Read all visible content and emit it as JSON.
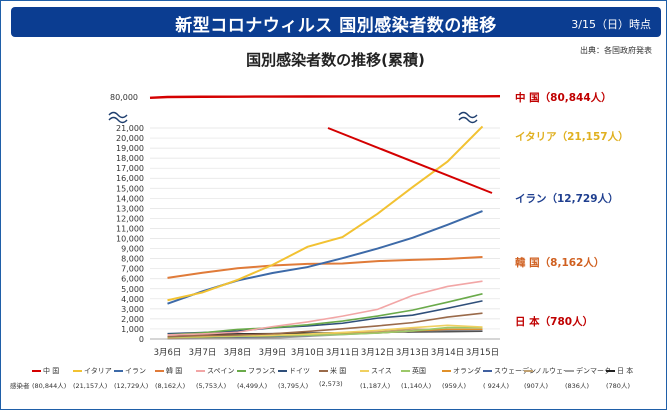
{
  "header": {
    "title": "新型コロナウィルス 国別感染者数の推移",
    "date": "3/15（日）時点"
  },
  "source": "出典：各国政府発表",
  "chart_data": {
    "type": "line",
    "title": "国別感染者数の推移(累積)",
    "categories": [
      "3月6日",
      "3月7日",
      "3月8日",
      "3月9日",
      "3月10日",
      "3月11日",
      "3月12日",
      "3月13日",
      "3月14日",
      "3月15日"
    ],
    "yticks": [
      0,
      1000,
      2000,
      3000,
      4000,
      5000,
      6000,
      7000,
      8000,
      9000,
      10000,
      11000,
      12000,
      13000,
      14000,
      15000,
      16000,
      17000,
      18000,
      19000,
      20000,
      21000
    ],
    "ytick_labels": [
      "0",
      "1,000",
      "2,000",
      "3,000",
      "4,000",
      "5,000",
      "6,000",
      "7,000",
      "8,000",
      "9,000",
      "10,000",
      "11,000",
      "12,000",
      "13,000",
      "14,000",
      "15,000",
      "16,000",
      "17,000",
      "18,000",
      "19,000",
      "20,000",
      "21,000"
    ],
    "ybreak_label": "80,000",
    "ylim": [
      0,
      21000
    ],
    "series": [
      {
        "name": "中 国",
        "color": "#d40000",
        "broken_axis": true,
        "values": [
          80552,
          80651,
          80695,
          80735,
          80754,
          80778,
          80793,
          80813,
          80824,
          80844
        ]
      },
      {
        "name": "イタリア",
        "color": "#f2c232",
        "values": [
          3858,
          4636,
          5883,
          7375,
          9172,
          10149,
          12462,
          15113,
          17660,
          21157
        ]
      },
      {
        "name": "イラン",
        "color": "#3d6aa8",
        "values": [
          3513,
          4747,
          5823,
          6566,
          7161,
          8042,
          9000,
          10075,
          11364,
          12729
        ]
      },
      {
        "name": "韓 国",
        "color": "#e07b39",
        "values": [
          6088,
          6593,
          7041,
          7313,
          7478,
          7513,
          7755,
          7869,
          7979,
          8162
        ]
      },
      {
        "name": "スペイン",
        "color": "#f2a6a6",
        "values": [
          400,
          500,
          673,
          1231,
          1695,
          2277,
          2950,
          4334,
          5232,
          5753
        ]
      },
      {
        "name": "フランス",
        "color": "#6aaa4a",
        "values": [
          423,
          613,
          949,
          1126,
          1412,
          1784,
          2281,
          2876,
          3661,
          4499
        ]
      },
      {
        "name": "ドイツ",
        "color": "#2f4f7a",
        "values": [
          534,
          639,
          795,
          1112,
          1296,
          1567,
          2078,
          2369,
          3062,
          3795
        ]
      },
      {
        "name": "米 国",
        "color": "#9a6a4a",
        "values": [
          233,
          338,
          402,
          518,
          755,
          1010,
          1301,
          1630,
          2183,
          2573
        ]
      },
      {
        "name": "スイス",
        "color": "#f0d060",
        "values": [
          214,
          268,
          337,
          374,
          491,
          652,
          858,
          1125,
          1359,
          1187
        ]
      },
      {
        "name": "英国",
        "color": "#9cc86a",
        "values": [
          163,
          206,
          273,
          321,
          373,
          456,
          590,
          798,
          1140,
          1140
        ]
      },
      {
        "name": "オランダ",
        "color": "#e0902a",
        "values": [
          128,
          188,
          265,
          321,
          382,
          503,
          614,
          804,
          959,
          959
        ]
      },
      {
        "name": "スウェーデン",
        "color": "#4060a0",
        "values": [
          137,
          161,
          203,
          248,
          355,
          500,
          599,
          814,
          924,
          924
        ]
      },
      {
        "name": "ノルウェー",
        "color": "#c0a070",
        "values": [
          108,
          147,
          176,
          205,
          400,
          598,
          702,
          996,
          907,
          907
        ]
      },
      {
        "name": "デンマーク",
        "color": "#a0a0a0",
        "values": [
          23,
          31,
          36,
          90,
          264,
          444,
          617,
          804,
          836,
          836
        ]
      },
      {
        "name": "日 本",
        "color": "#222222",
        "values": [
          420,
          461,
          502,
          530,
          581,
          620,
          675,
          716,
          737,
          780
        ]
      }
    ],
    "annotations": [
      {
        "text": "中 国（80,844人）",
        "color": "#c00000"
      },
      {
        "text": "イタリア（21,157人）",
        "color": "#e0b020"
      },
      {
        "text": "イラン（12,729人）",
        "color": "#1f3f8f"
      },
      {
        "text": "韓 国（8,162人）",
        "color": "#d06020"
      },
      {
        "text": "日 本（780人）",
        "color": "#c00000"
      }
    ]
  },
  "legend": {
    "row_label": "感染者",
    "items": [
      {
        "name": "中 国",
        "value": "(80,844人)",
        "color": "#d40000"
      },
      {
        "name": "イタリア",
        "value": "(21,157人)",
        "color": "#f2c232"
      },
      {
        "name": "イラン",
        "value": "(12,729人)",
        "color": "#3d6aa8"
      },
      {
        "name": "韓 国",
        "value": "(8,162人)",
        "color": "#e07b39"
      },
      {
        "name": "スペイン",
        "value": "(5,753人)",
        "color": "#f2a6a6"
      },
      {
        "name": "フランス",
        "value": "(4,499人)",
        "color": "#6aaa4a"
      },
      {
        "name": "ドイツ",
        "value": "(3,795人)",
        "color": "#2f4f7a"
      },
      {
        "name": "米 国",
        "value": "(2,573)",
        "color": "#9a6a4a"
      },
      {
        "name": "スイス",
        "value": "(1,187人)",
        "color": "#f0d060"
      },
      {
        "name": "英国",
        "value": "(1,140人)",
        "color": "#9cc86a"
      },
      {
        "name": "オランダ",
        "value": "(959人)",
        "color": "#e0902a"
      },
      {
        "name": "スウェーデン",
        "value": "( 924人)",
        "color": "#4060a0"
      },
      {
        "name": "ノルウェー",
        "value": "(907人)",
        "color": "#c0a070"
      },
      {
        "name": "デンマーク",
        "value": "(836人)",
        "color": "#a0a0a0"
      },
      {
        "name": "日 本",
        "value": "(780人)",
        "color": "#222222"
      }
    ]
  }
}
